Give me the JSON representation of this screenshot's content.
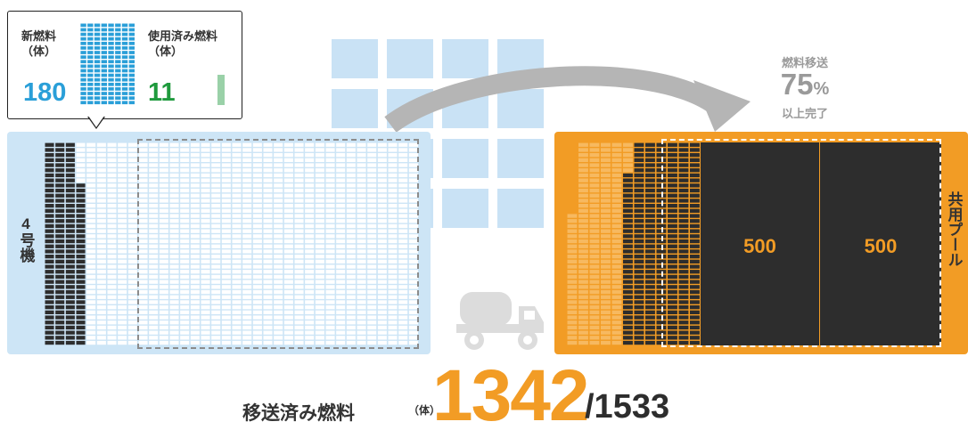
{
  "unit4": {
    "label": "4号機",
    "rack_rows": 40,
    "rack_cols": 36,
    "spent_cols": 4,
    "spent_top_rows": 8,
    "colors": {
      "spent": "#2d2d2d",
      "empty": "#ffffff",
      "panel": "#cde5f6"
    }
  },
  "callout": {
    "new_fuel_label": "新燃料（体）",
    "new_fuel_value": "180",
    "used_fuel_label": "使用済み燃料（体）",
    "used_fuel_value": "11",
    "colors": {
      "new": "#2a9fd8",
      "used": "#1f9a3d"
    }
  },
  "transfer": {
    "label": "燃料移送",
    "percent": "75",
    "percent_unit": "%",
    "status": "以上完了",
    "color": "#9a9a9a"
  },
  "pool": {
    "label": "共用プール",
    "block_values": [
      "500",
      "500"
    ],
    "colors": {
      "panel": "#f29c25",
      "block": "#2d2d2d",
      "filled": "#2d2d2d",
      "empty": "#f7b960"
    }
  },
  "total": {
    "label": "移送済み燃料",
    "unit": "（体）",
    "value": "1342",
    "max": "/1533",
    "color": "#f29c25"
  },
  "icons": [
    "building-icon",
    "transfer-arrow-icon",
    "truck-icon",
    "fuel-rack-icon"
  ]
}
